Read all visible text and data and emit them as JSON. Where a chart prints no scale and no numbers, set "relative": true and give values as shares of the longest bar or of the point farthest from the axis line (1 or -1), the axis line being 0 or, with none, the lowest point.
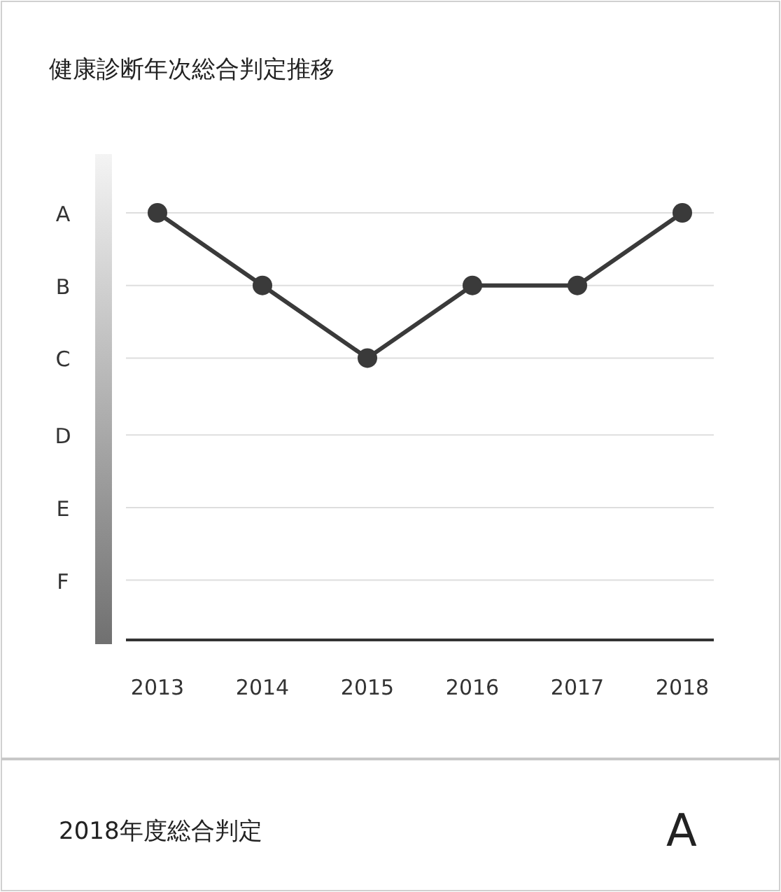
{
  "chart_data": {
    "type": "line",
    "title": "健康診断年次総合判定推移",
    "relative": true,
    "x": [
      2013,
      2014,
      2015,
      2016,
      2017,
      2018
    ],
    "series": [
      {
        "color": "#3a3a3a",
        "values": [
          1,
          0.83,
          0.66,
          0.83,
          0.83,
          1
        ]
      }
    ],
    "xlim": [
      2012.7,
      2018.3
    ],
    "xticks": [
      2013,
      2014,
      2015,
      2016,
      2017,
      2018
    ],
    "ref_lines": [
      {
        "axis": "y",
        "value": 1,
        "label": "A",
        "color": "#dedede"
      },
      {
        "axis": "y",
        "value": 0.83,
        "label": "B",
        "color": "#dedede"
      },
      {
        "axis": "y",
        "value": 0.66,
        "label": "C",
        "color": "#dedede"
      },
      {
        "axis": "y",
        "value": 0.48,
        "label": "D",
        "color": "#dedede"
      },
      {
        "axis": "y",
        "value": 0.31,
        "label": "E",
        "color": "#dedede"
      },
      {
        "axis": "y",
        "value": 0.14,
        "label": "F",
        "color": "#dedede"
      }
    ],
    "marker": "circle",
    "line_style": "solid",
    "annotations": [
      "2018年度総合判定",
      "A"
    ]
  }
}
